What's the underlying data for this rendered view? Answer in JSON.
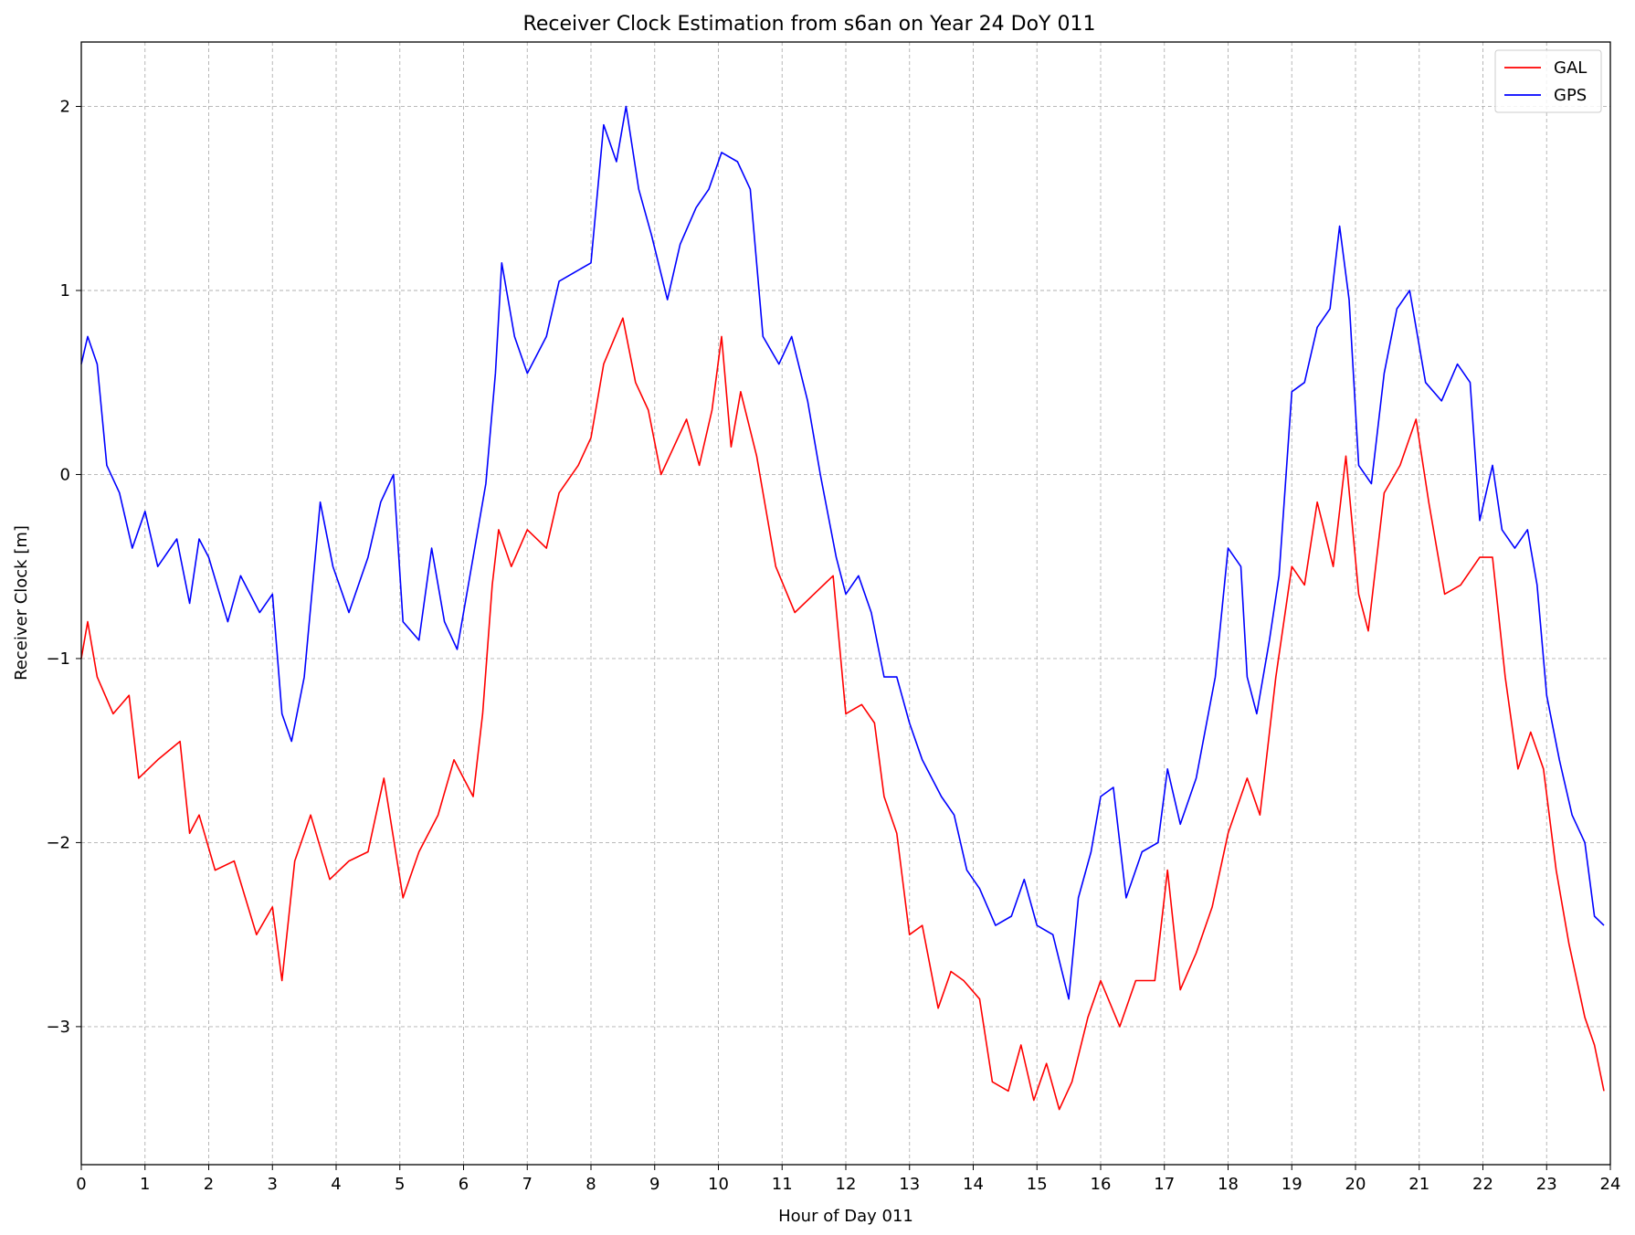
{
  "chart_data": {
    "type": "line",
    "title": "Receiver Clock Estimation from s6an on Year 24 DoY 011",
    "xlabel": "Hour of Day 011",
    "ylabel": "Receiver Clock [m]",
    "xlim": [
      0,
      24
    ],
    "ylim": [
      -3.75,
      2.35
    ],
    "xticks": [
      0,
      1,
      2,
      3,
      4,
      5,
      6,
      7,
      8,
      9,
      10,
      11,
      12,
      13,
      14,
      15,
      16,
      17,
      18,
      19,
      20,
      21,
      22,
      23,
      24
    ],
    "yticks": [
      -3,
      -2,
      -1,
      0,
      1,
      2
    ],
    "ytick_labels": [
      "−3",
      "−2",
      "−1",
      "0",
      "1",
      "2"
    ],
    "grid": true,
    "legend_position": "top-right",
    "series": [
      {
        "name": "GAL",
        "color": "#ff0000",
        "points": [
          [
            0,
            -1.0
          ],
          [
            0.1,
            -0.8
          ],
          [
            0.25,
            -1.1
          ],
          [
            0.5,
            -1.3
          ],
          [
            0.75,
            -1.2
          ],
          [
            0.9,
            -1.65
          ],
          [
            1.2,
            -1.55
          ],
          [
            1.55,
            -1.45
          ],
          [
            1.7,
            -1.95
          ],
          [
            1.85,
            -1.85
          ],
          [
            2.1,
            -2.15
          ],
          [
            2.4,
            -2.1
          ],
          [
            2.75,
            -2.5
          ],
          [
            3.0,
            -2.35
          ],
          [
            3.15,
            -2.75
          ],
          [
            3.35,
            -2.1
          ],
          [
            3.6,
            -1.85
          ],
          [
            3.9,
            -2.2
          ],
          [
            4.2,
            -2.1
          ],
          [
            4.5,
            -2.05
          ],
          [
            4.75,
            -1.65
          ],
          [
            5.05,
            -2.3
          ],
          [
            5.3,
            -2.05
          ],
          [
            5.6,
            -1.85
          ],
          [
            5.85,
            -1.55
          ],
          [
            6.15,
            -1.75
          ],
          [
            6.3,
            -1.3
          ],
          [
            6.45,
            -0.6
          ],
          [
            6.55,
            -0.3
          ],
          [
            6.75,
            -0.5
          ],
          [
            7.0,
            -0.3
          ],
          [
            7.3,
            -0.4
          ],
          [
            7.5,
            -0.1
          ],
          [
            7.8,
            0.05
          ],
          [
            8.0,
            0.2
          ],
          [
            8.2,
            0.6
          ],
          [
            8.5,
            0.85
          ],
          [
            8.7,
            0.5
          ],
          [
            8.9,
            0.35
          ],
          [
            9.1,
            0.0
          ],
          [
            9.3,
            0.15
          ],
          [
            9.5,
            0.3
          ],
          [
            9.7,
            0.05
          ],
          [
            9.9,
            0.35
          ],
          [
            10.05,
            0.75
          ],
          [
            10.2,
            0.15
          ],
          [
            10.35,
            0.45
          ],
          [
            10.6,
            0.1
          ],
          [
            10.9,
            -0.5
          ],
          [
            11.2,
            -0.75
          ],
          [
            11.5,
            -0.65
          ],
          [
            11.8,
            -0.55
          ],
          [
            12.0,
            -1.3
          ],
          [
            12.25,
            -1.25
          ],
          [
            12.45,
            -1.35
          ],
          [
            12.6,
            -1.75
          ],
          [
            12.8,
            -1.95
          ],
          [
            13.0,
            -2.5
          ],
          [
            13.2,
            -2.45
          ],
          [
            13.45,
            -2.9
          ],
          [
            13.65,
            -2.7
          ],
          [
            13.85,
            -2.75
          ],
          [
            14.1,
            -2.85
          ],
          [
            14.3,
            -3.3
          ],
          [
            14.55,
            -3.35
          ],
          [
            14.75,
            -3.1
          ],
          [
            14.95,
            -3.4
          ],
          [
            15.15,
            -3.2
          ],
          [
            15.35,
            -3.45
          ],
          [
            15.55,
            -3.3
          ],
          [
            15.8,
            -2.95
          ],
          [
            16.0,
            -2.75
          ],
          [
            16.3,
            -3.0
          ],
          [
            16.55,
            -2.75
          ],
          [
            16.85,
            -2.75
          ],
          [
            17.05,
            -2.15
          ],
          [
            17.25,
            -2.8
          ],
          [
            17.5,
            -2.6
          ],
          [
            17.75,
            -2.35
          ],
          [
            18.0,
            -1.95
          ],
          [
            18.3,
            -1.65
          ],
          [
            18.5,
            -1.85
          ],
          [
            18.75,
            -1.1
          ],
          [
            19.0,
            -0.5
          ],
          [
            19.2,
            -0.6
          ],
          [
            19.4,
            -0.15
          ],
          [
            19.65,
            -0.5
          ],
          [
            19.85,
            0.1
          ],
          [
            20.05,
            -0.65
          ],
          [
            20.2,
            -0.85
          ],
          [
            20.45,
            -0.1
          ],
          [
            20.7,
            0.05
          ],
          [
            20.95,
            0.3
          ],
          [
            21.15,
            -0.15
          ],
          [
            21.4,
            -0.65
          ],
          [
            21.65,
            -0.6
          ],
          [
            21.95,
            -0.45
          ],
          [
            22.15,
            -0.45
          ],
          [
            22.35,
            -1.1
          ],
          [
            22.55,
            -1.6
          ],
          [
            22.75,
            -1.4
          ],
          [
            22.95,
            -1.6
          ],
          [
            23.15,
            -2.15
          ],
          [
            23.35,
            -2.55
          ],
          [
            23.6,
            -2.95
          ],
          [
            23.75,
            -3.1
          ],
          [
            23.9,
            -3.35
          ]
        ]
      },
      {
        "name": "GPS",
        "color": "#0000ff",
        "points": [
          [
            0,
            0.6
          ],
          [
            0.1,
            0.75
          ],
          [
            0.25,
            0.6
          ],
          [
            0.4,
            0.05
          ],
          [
            0.6,
            -0.1
          ],
          [
            0.8,
            -0.4
          ],
          [
            1.0,
            -0.2
          ],
          [
            1.2,
            -0.5
          ],
          [
            1.5,
            -0.35
          ],
          [
            1.7,
            -0.7
          ],
          [
            1.85,
            -0.35
          ],
          [
            2.0,
            -0.45
          ],
          [
            2.3,
            -0.8
          ],
          [
            2.5,
            -0.55
          ],
          [
            2.8,
            -0.75
          ],
          [
            3.0,
            -0.65
          ],
          [
            3.15,
            -1.3
          ],
          [
            3.3,
            -1.45
          ],
          [
            3.5,
            -1.1
          ],
          [
            3.75,
            -0.15
          ],
          [
            3.95,
            -0.5
          ],
          [
            4.2,
            -0.75
          ],
          [
            4.5,
            -0.45
          ],
          [
            4.7,
            -0.15
          ],
          [
            4.9,
            0.0
          ],
          [
            5.05,
            -0.8
          ],
          [
            5.3,
            -0.9
          ],
          [
            5.5,
            -0.4
          ],
          [
            5.7,
            -0.8
          ],
          [
            5.9,
            -0.95
          ],
          [
            6.1,
            -0.55
          ],
          [
            6.35,
            -0.05
          ],
          [
            6.5,
            0.55
          ],
          [
            6.6,
            1.15
          ],
          [
            6.8,
            0.75
          ],
          [
            7.0,
            0.55
          ],
          [
            7.3,
            0.75
          ],
          [
            7.5,
            1.05
          ],
          [
            7.75,
            1.1
          ],
          [
            8.0,
            1.15
          ],
          [
            8.2,
            1.9
          ],
          [
            8.4,
            1.7
          ],
          [
            8.55,
            2.0
          ],
          [
            8.75,
            1.55
          ],
          [
            8.95,
            1.3
          ],
          [
            9.2,
            0.95
          ],
          [
            9.4,
            1.25
          ],
          [
            9.65,
            1.45
          ],
          [
            9.85,
            1.55
          ],
          [
            10.05,
            1.75
          ],
          [
            10.3,
            1.7
          ],
          [
            10.5,
            1.55
          ],
          [
            10.7,
            0.75
          ],
          [
            10.95,
            0.6
          ],
          [
            11.15,
            0.75
          ],
          [
            11.4,
            0.4
          ],
          [
            11.6,
            0.0
          ],
          [
            11.85,
            -0.45
          ],
          [
            12.0,
            -0.65
          ],
          [
            12.2,
            -0.55
          ],
          [
            12.4,
            -0.75
          ],
          [
            12.6,
            -1.1
          ],
          [
            12.8,
            -1.1
          ],
          [
            13.0,
            -1.35
          ],
          [
            13.2,
            -1.55
          ],
          [
            13.5,
            -1.75
          ],
          [
            13.7,
            -1.85
          ],
          [
            13.9,
            -2.15
          ],
          [
            14.1,
            -2.25
          ],
          [
            14.35,
            -2.45
          ],
          [
            14.6,
            -2.4
          ],
          [
            14.8,
            -2.2
          ],
          [
            15.0,
            -2.45
          ],
          [
            15.25,
            -2.5
          ],
          [
            15.5,
            -2.85
          ],
          [
            15.65,
            -2.3
          ],
          [
            15.85,
            -2.05
          ],
          [
            16.0,
            -1.75
          ],
          [
            16.2,
            -1.7
          ],
          [
            16.4,
            -2.3
          ],
          [
            16.65,
            -2.05
          ],
          [
            16.9,
            -2.0
          ],
          [
            17.05,
            -1.6
          ],
          [
            17.25,
            -1.9
          ],
          [
            17.5,
            -1.65
          ],
          [
            17.8,
            -1.1
          ],
          [
            18.0,
            -0.4
          ],
          [
            18.2,
            -0.5
          ],
          [
            18.3,
            -1.1
          ],
          [
            18.45,
            -1.3
          ],
          [
            18.65,
            -0.9
          ],
          [
            18.8,
            -0.55
          ],
          [
            19.0,
            0.45
          ],
          [
            19.2,
            0.5
          ],
          [
            19.4,
            0.8
          ],
          [
            19.6,
            0.9
          ],
          [
            19.75,
            1.35
          ],
          [
            19.9,
            0.95
          ],
          [
            20.05,
            0.05
          ],
          [
            20.25,
            -0.05
          ],
          [
            20.45,
            0.55
          ],
          [
            20.65,
            0.9
          ],
          [
            20.85,
            1.0
          ],
          [
            21.1,
            0.5
          ],
          [
            21.35,
            0.4
          ],
          [
            21.6,
            0.6
          ],
          [
            21.8,
            0.5
          ],
          [
            21.95,
            -0.25
          ],
          [
            22.15,
            0.05
          ],
          [
            22.3,
            -0.3
          ],
          [
            22.5,
            -0.4
          ],
          [
            22.7,
            -0.3
          ],
          [
            22.85,
            -0.6
          ],
          [
            23.0,
            -1.2
          ],
          [
            23.2,
            -1.55
          ],
          [
            23.4,
            -1.85
          ],
          [
            23.6,
            -2.0
          ],
          [
            23.75,
            -2.4
          ],
          [
            23.9,
            -2.45
          ]
        ]
      }
    ]
  }
}
